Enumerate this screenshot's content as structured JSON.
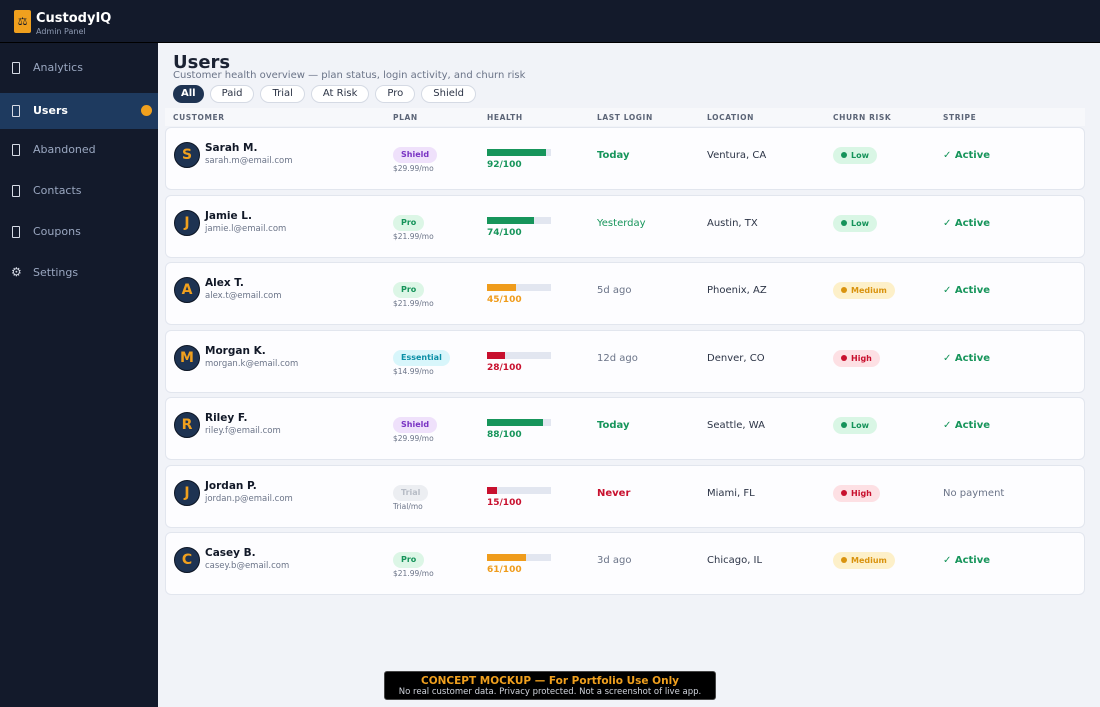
{
  "app": {
    "name": "CustodyIQ",
    "subtitle": "Admin Panel"
  },
  "sidebar": {
    "items": [
      {
        "label": "Analytics",
        "icon": "phone-icon",
        "active": false
      },
      {
        "label": "Users",
        "icon": "phone-icon",
        "active": true,
        "indicator_color": "#f0a01e"
      },
      {
        "label": "Abandoned",
        "icon": "phone-icon",
        "active": false
      },
      {
        "label": "Contacts",
        "icon": "phone-icon",
        "active": false
      },
      {
        "label": "Coupons",
        "icon": "phone-icon",
        "active": false
      },
      {
        "label": "Settings",
        "icon": "gear-icon",
        "active": false
      }
    ]
  },
  "page": {
    "title": "Users",
    "subtitle": "Customer health overview — plan status, login activity, and churn risk"
  },
  "filters": [
    "All",
    "Paid",
    "Trial",
    "At Risk",
    "Pro",
    "Shield"
  ],
  "active_filter": "All",
  "table": {
    "columns": [
      "CUSTOMER",
      "PLAN",
      "HEALTH",
      "LAST LOGIN",
      "LOCATION",
      "CHURN RISK",
      "STRIPE"
    ],
    "rows": [
      {
        "initial": "S",
        "name": "Sarah M.",
        "email": "sarah.m@email.com",
        "plan": "Shield",
        "price": "$29.99/mo",
        "health": 92,
        "health_label": "92/100",
        "last_login": "Today",
        "location": "Ventura, CA",
        "risk": "Low",
        "stripe": "✓ Active"
      },
      {
        "initial": "J",
        "name": "Jamie L.",
        "email": "jamie.l@email.com",
        "plan": "Pro",
        "price": "$21.99/mo",
        "health": 74,
        "health_label": "74/100",
        "last_login": "Yesterday",
        "location": "Austin, TX",
        "risk": "Low",
        "stripe": "✓ Active"
      },
      {
        "initial": "A",
        "name": "Alex T.",
        "email": "alex.t@email.com",
        "plan": "Pro",
        "price": "$21.99/mo",
        "health": 45,
        "health_label": "45/100",
        "last_login": "5d ago",
        "location": "Phoenix, AZ",
        "risk": "Medium",
        "stripe": "✓ Active"
      },
      {
        "initial": "M",
        "name": "Morgan K.",
        "email": "morgan.k@email.com",
        "plan": "Essential",
        "price": "$14.99/mo",
        "health": 28,
        "health_label": "28/100",
        "last_login": "12d ago",
        "location": "Denver, CO",
        "risk": "High",
        "stripe": "✓ Active"
      },
      {
        "initial": "R",
        "name": "Riley F.",
        "email": "riley.f@email.com",
        "plan": "Shield",
        "price": "$29.99/mo",
        "health": 88,
        "health_label": "88/100",
        "last_login": "Today",
        "location": "Seattle, WA",
        "risk": "Low",
        "stripe": "✓ Active"
      },
      {
        "initial": "J",
        "name": "Jordan P.",
        "email": "jordan.p@email.com",
        "plan": "Trial",
        "price": "Trial/mo",
        "health": 15,
        "health_label": "15/100",
        "last_login": "Never",
        "location": "Miami, FL",
        "risk": "High",
        "stripe": "No payment"
      },
      {
        "initial": "C",
        "name": "Casey B.",
        "email": "casey.b@email.com",
        "plan": "Pro",
        "price": "$21.99/mo",
        "health": 61,
        "health_label": "61/100",
        "last_login": "3d ago",
        "location": "Chicago, IL",
        "risk": "Medium",
        "stripe": "✓ Active"
      }
    ]
  },
  "colors": {
    "accent": "#f0a01e",
    "health_good": "#17955b",
    "health_medium": "#ef9c1c",
    "health_bad": "#c8102e",
    "plan_shield": {
      "bg": "#efe1fb",
      "fg": "#7a34c4"
    },
    "plan_pro": {
      "bg": "#dcf6e6",
      "fg": "#15935a"
    },
    "plan_essential": {
      "bg": "#d8f6fb",
      "fg": "#0b8fa6"
    },
    "plan_trial": {
      "bg": "#eceef2",
      "fg": "#b7bcc6"
    },
    "risk_low": {
      "bg": "#d9f6e5",
      "fg": "#15935a"
    },
    "risk_medium": {
      "bg": "#fdf0c9",
      "fg": "#d9930f"
    },
    "risk_high": {
      "bg": "#fde0e4",
      "fg": "#c8102e"
    }
  },
  "banner": {
    "title": "CONCEPT MOCKUP — For Portfolio Use Only",
    "subtitle": "No real customer data. Privacy protected. Not a screenshot of live app."
  }
}
